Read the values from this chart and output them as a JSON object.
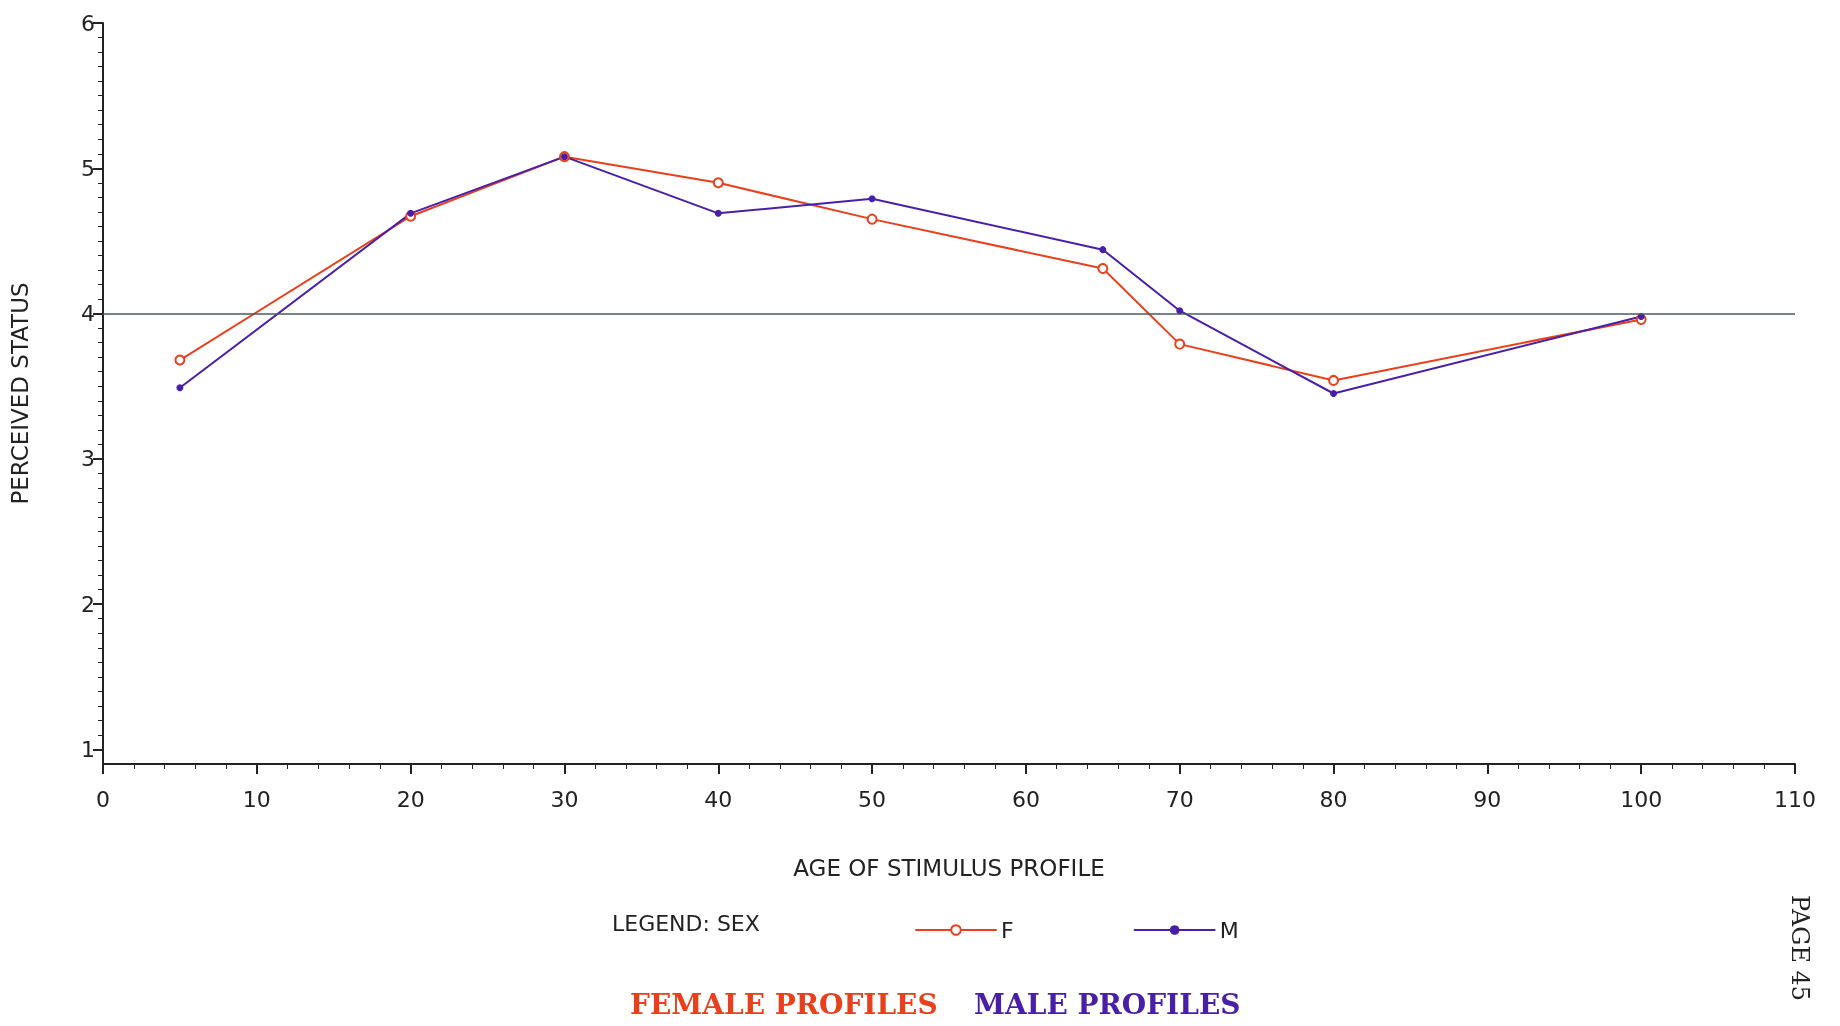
{
  "chart_data": {
    "type": "line",
    "xlabel": "AGE OF STIMULUS PROFILE",
    "ylabel": "PERCEIVED STATUS",
    "legend_title": "LEGEND: SEX",
    "x": [
      5,
      20,
      30,
      40,
      50,
      65,
      70,
      80,
      100
    ],
    "series": [
      {
        "name": "F",
        "color": "#e8401c",
        "marker": "circle",
        "values": [
          3.68,
          4.67,
          5.08,
          4.9,
          4.65,
          4.31,
          3.79,
          3.54,
          3.96
        ]
      },
      {
        "name": "M",
        "color": "#4a1fa8",
        "marker": "dot",
        "values": [
          3.49,
          4.69,
          5.08,
          4.69,
          4.79,
          4.44,
          4.02,
          3.45,
          3.98
        ]
      }
    ],
    "xlim": [
      0,
      110
    ],
    "xticks": [
      0,
      10,
      20,
      30,
      40,
      50,
      60,
      70,
      80,
      90,
      100,
      110
    ],
    "ylim": [
      0.9,
      6
    ],
    "yticks": [
      1,
      2,
      3,
      4,
      5,
      6
    ],
    "ref_lines": [
      {
        "axis": "y",
        "value": 4,
        "color": "#4a5a60"
      }
    ],
    "grid": false,
    "legend": "bottom",
    "line_style": "solid",
    "annotations": [
      "FEMALE PROFILES",
      "MALE PROFILES",
      "PAGE 45"
    ]
  }
}
